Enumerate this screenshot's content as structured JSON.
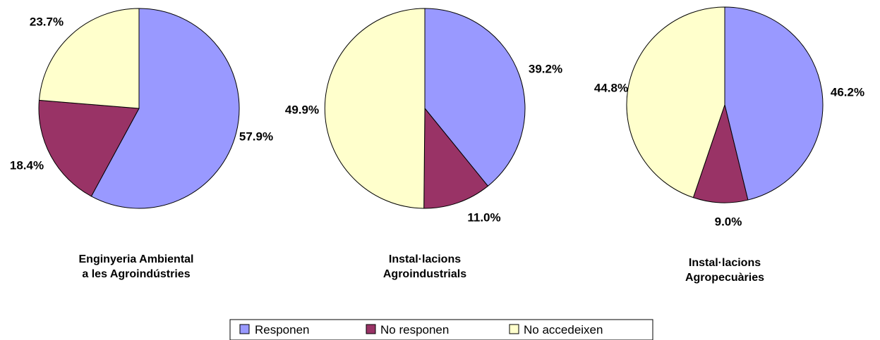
{
  "legend": {
    "items": [
      {
        "label": "Responen",
        "color": "#9999ff"
      },
      {
        "label": "No responen",
        "color": "#993366"
      },
      {
        "label": "No accedeixen",
        "color": "#ffffcc"
      }
    ]
  },
  "chart_data": [
    {
      "type": "pie",
      "title_lines": [
        "Enginyeria Ambiental",
        "a les Agroindústries"
      ],
      "slices": [
        {
          "label": "Responen",
          "value": 57.9,
          "display": "57.9%"
        },
        {
          "label": "No responen",
          "value": 18.4,
          "display": "18.4%"
        },
        {
          "label": "No accedeixen",
          "value": 23.7,
          "display": "23.7%"
        }
      ]
    },
    {
      "type": "pie",
      "title_lines": [
        "Instal·lacions",
        "Agroindustrials"
      ],
      "slices": [
        {
          "label": "Responen",
          "value": 39.2,
          "display": "39.2%"
        },
        {
          "label": "No responen",
          "value": 11.0,
          "display": "11.0%"
        },
        {
          "label": "No accedeixen",
          "value": 49.9,
          "display": "49.9%"
        }
      ]
    },
    {
      "type": "pie",
      "title_lines": [
        "Instal·lacions",
        "Agropecuàries"
      ],
      "slices": [
        {
          "label": "Responen",
          "value": 46.2,
          "display": "46.2%"
        },
        {
          "label": "No responen",
          "value": 9.0,
          "display": "9.0%"
        },
        {
          "label": "No accedeixen",
          "value": 44.8,
          "display": "44.8%"
        }
      ]
    }
  ]
}
